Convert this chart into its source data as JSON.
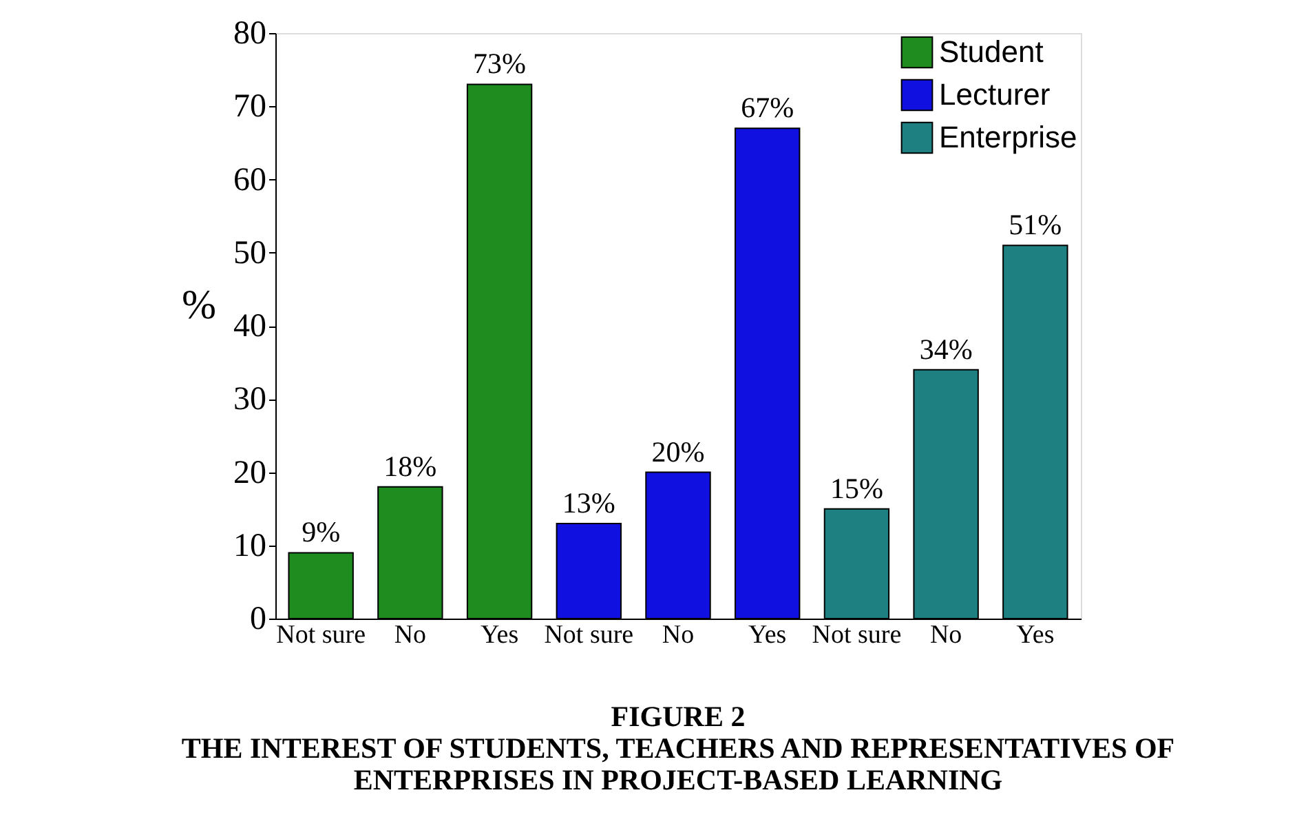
{
  "chart_data": {
    "type": "bar",
    "title": "FIGURE 2",
    "subtitle": "THE INTEREST OF STUDENTS, TEACHERS AND REPRESENTATIVES OF ENTERPRISES IN PROJECT-BASED LEARNING",
    "ylabel": "%",
    "categories": [
      "Not sure",
      "No",
      "Yes",
      "Not sure",
      "No",
      "Yes",
      "Not sure",
      "No",
      "Yes"
    ],
    "series": [
      {
        "name": "Student",
        "color": "#1e8c1e",
        "values": [
          9,
          18,
          73,
          null,
          null,
          null,
          null,
          null,
          null
        ],
        "value_labels": [
          "9%",
          "18%",
          "73%",
          null,
          null,
          null,
          null,
          null,
          null
        ]
      },
      {
        "name": "Lecturer",
        "color": "#1010e0",
        "values": [
          null,
          null,
          null,
          13,
          20,
          67,
          null,
          null,
          null
        ],
        "value_labels": [
          null,
          null,
          null,
          "13%",
          "20%",
          "67%",
          null,
          null,
          null
        ]
      },
      {
        "name": "Enterprise",
        "color": "#1e8080",
        "values": [
          null,
          null,
          null,
          null,
          null,
          null,
          15,
          34,
          51
        ],
        "value_labels": [
          null,
          null,
          null,
          null,
          null,
          null,
          "15%",
          "34%",
          "51%"
        ]
      }
    ],
    "ylim": [
      0,
      80
    ],
    "yticks": [
      0,
      10,
      20,
      30,
      40,
      50,
      60,
      70,
      80
    ],
    "grid": false,
    "legend": "top right"
  }
}
